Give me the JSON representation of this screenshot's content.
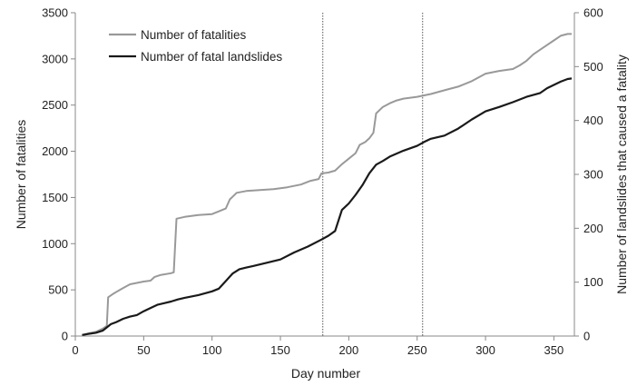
{
  "chart_data": {
    "type": "line",
    "xlabel": "Day number",
    "ylabel_left": "Number of fatalities",
    "ylabel_right": "Number of landslides that caused a fatality",
    "xlim": [
      0,
      365
    ],
    "ylim_left": [
      0,
      3500
    ],
    "ylim_right": [
      0,
      600
    ],
    "x_ticks": [
      0,
      50,
      100,
      150,
      200,
      250,
      300,
      350
    ],
    "y_left_ticks": [
      0,
      500,
      1000,
      1500,
      2000,
      2500,
      3000,
      3500
    ],
    "y_right_ticks": [
      0,
      100,
      200,
      300,
      400,
      500,
      600
    ],
    "grid": false,
    "legend_position": "top-left",
    "vertical_lines": [
      181,
      254
    ],
    "series": [
      {
        "name": "Number of fatalities",
        "axis": "left",
        "color": "#999999",
        "points": [
          [
            5,
            10
          ],
          [
            10,
            30
          ],
          [
            15,
            45
          ],
          [
            20,
            80
          ],
          [
            23,
            110
          ],
          [
            24,
            420
          ],
          [
            28,
            460
          ],
          [
            35,
            520
          ],
          [
            40,
            560
          ],
          [
            50,
            590
          ],
          [
            55,
            600
          ],
          [
            58,
            640
          ],
          [
            62,
            660
          ],
          [
            70,
            680
          ],
          [
            72,
            690
          ],
          [
            74,
            1270
          ],
          [
            80,
            1290
          ],
          [
            90,
            1310
          ],
          [
            100,
            1320
          ],
          [
            105,
            1350
          ],
          [
            110,
            1380
          ],
          [
            113,
            1480
          ],
          [
            118,
            1550
          ],
          [
            125,
            1570
          ],
          [
            135,
            1580
          ],
          [
            145,
            1590
          ],
          [
            155,
            1610
          ],
          [
            165,
            1640
          ],
          [
            172,
            1680
          ],
          [
            178,
            1700
          ],
          [
            180,
            1760
          ],
          [
            185,
            1770
          ],
          [
            190,
            1790
          ],
          [
            195,
            1860
          ],
          [
            200,
            1920
          ],
          [
            205,
            1980
          ],
          [
            208,
            2070
          ],
          [
            212,
            2100
          ],
          [
            215,
            2140
          ],
          [
            218,
            2200
          ],
          [
            220,
            2410
          ],
          [
            225,
            2480
          ],
          [
            230,
            2520
          ],
          [
            235,
            2550
          ],
          [
            240,
            2570
          ],
          [
            250,
            2590
          ],
          [
            260,
            2620
          ],
          [
            270,
            2660
          ],
          [
            280,
            2700
          ],
          [
            290,
            2760
          ],
          [
            300,
            2840
          ],
          [
            310,
            2870
          ],
          [
            320,
            2890
          ],
          [
            325,
            2930
          ],
          [
            330,
            2980
          ],
          [
            335,
            3050
          ],
          [
            340,
            3100
          ],
          [
            345,
            3150
          ],
          [
            350,
            3200
          ],
          [
            355,
            3250
          ],
          [
            360,
            3270
          ],
          [
            363,
            3270
          ]
        ]
      },
      {
        "name": "Number of fatal landslides",
        "axis": "right",
        "color": "#1a1a1a",
        "points": [
          [
            5,
            2
          ],
          [
            10,
            4
          ],
          [
            15,
            6
          ],
          [
            20,
            10
          ],
          [
            23,
            16
          ],
          [
            26,
            22
          ],
          [
            30,
            26
          ],
          [
            35,
            32
          ],
          [
            40,
            36
          ],
          [
            45,
            39
          ],
          [
            50,
            46
          ],
          [
            55,
            52
          ],
          [
            60,
            58
          ],
          [
            65,
            61
          ],
          [
            70,
            64
          ],
          [
            75,
            68
          ],
          [
            80,
            71
          ],
          [
            90,
            76
          ],
          [
            100,
            83
          ],
          [
            105,
            88
          ],
          [
            110,
            102
          ],
          [
            115,
            116
          ],
          [
            120,
            124
          ],
          [
            125,
            127
          ],
          [
            130,
            130
          ],
          [
            140,
            136
          ],
          [
            150,
            142
          ],
          [
            160,
            155
          ],
          [
            170,
            166
          ],
          [
            180,
            179
          ],
          [
            185,
            186
          ],
          [
            190,
            195
          ],
          [
            195,
            234
          ],
          [
            200,
            246
          ],
          [
            205,
            262
          ],
          [
            210,
            280
          ],
          [
            215,
            302
          ],
          [
            220,
            318
          ],
          [
            225,
            325
          ],
          [
            230,
            333
          ],
          [
            240,
            344
          ],
          [
            250,
            353
          ],
          [
            255,
            360
          ],
          [
            260,
            366
          ],
          [
            270,
            372
          ],
          [
            280,
            385
          ],
          [
            290,
            402
          ],
          [
            300,
            417
          ],
          [
            310,
            425
          ],
          [
            320,
            434
          ],
          [
            330,
            444
          ],
          [
            340,
            451
          ],
          [
            345,
            460
          ],
          [
            350,
            466
          ],
          [
            355,
            472
          ],
          [
            360,
            477
          ],
          [
            363,
            478
          ]
        ]
      }
    ]
  }
}
